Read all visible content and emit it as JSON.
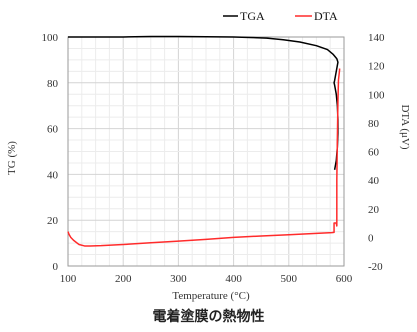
{
  "caption": "電着塗膜の熱物性",
  "chart_data": {
    "type": "line",
    "title": "",
    "xlabel": "Temperature (°C)",
    "ylabel_left": "TG (%)",
    "ylabel_right": "DTA (μV)",
    "xlim": [
      100,
      600
    ],
    "ylim_left": [
      0,
      100
    ],
    "ylim_right": [
      -20,
      140
    ],
    "x_ticks": [
      "100",
      "200",
      "300",
      "400",
      "500",
      "600"
    ],
    "y_left_ticks": [
      "0",
      "20",
      "40",
      "60",
      "80",
      "100"
    ],
    "y_right_ticks": [
      "-20",
      "0",
      "20",
      "40",
      "60",
      "80",
      "100",
      "120",
      "140"
    ],
    "grid": true,
    "legend_position": "top-right",
    "series": [
      {
        "name": "TGA",
        "axis": "left",
        "color": "#000000",
        "points": [
          [
            100,
            100
          ],
          [
            150,
            100
          ],
          [
            200,
            100
          ],
          [
            250,
            100.2
          ],
          [
            300,
            100.2
          ],
          [
            350,
            100.1
          ],
          [
            400,
            100
          ],
          [
            430,
            99.8
          ],
          [
            460,
            99.5
          ],
          [
            490,
            98.8
          ],
          [
            520,
            97.8
          ],
          [
            550,
            96.2
          ],
          [
            570,
            94.5
          ],
          [
            580,
            92.5
          ],
          [
            587,
            90.5
          ],
          [
            589,
            89
          ],
          [
            586,
            85
          ],
          [
            583,
            81
          ],
          [
            582,
            80
          ],
          [
            583,
            79
          ],
          [
            586,
            75
          ],
          [
            588,
            70
          ],
          [
            589,
            64
          ],
          [
            589,
            58
          ],
          [
            588,
            52
          ],
          [
            586,
            46
          ],
          [
            583,
            42
          ]
        ]
      },
      {
        "name": "DTA",
        "axis": "right",
        "color": "#ff2b2b",
        "points": [
          [
            100,
            4
          ],
          [
            102,
            2
          ],
          [
            105,
            0
          ],
          [
            110,
            -2
          ],
          [
            120,
            -5
          ],
          [
            130,
            -6
          ],
          [
            140,
            -6
          ],
          [
            160,
            -5.8
          ],
          [
            200,
            -5
          ],
          [
            250,
            -3.8
          ],
          [
            300,
            -2.6
          ],
          [
            350,
            -1.4
          ],
          [
            400,
            0
          ],
          [
            450,
            1
          ],
          [
            500,
            1.8
          ],
          [
            550,
            2.8
          ],
          [
            578,
            3.3
          ],
          [
            582,
            3.5
          ],
          [
            582,
            10
          ],
          [
            586,
            10
          ],
          [
            587,
            8
          ],
          [
            587,
            40
          ],
          [
            588,
            70
          ],
          [
            589,
            95
          ],
          [
            590,
            110
          ],
          [
            592,
            117
          ],
          [
            592,
            118
          ]
        ]
      }
    ]
  }
}
